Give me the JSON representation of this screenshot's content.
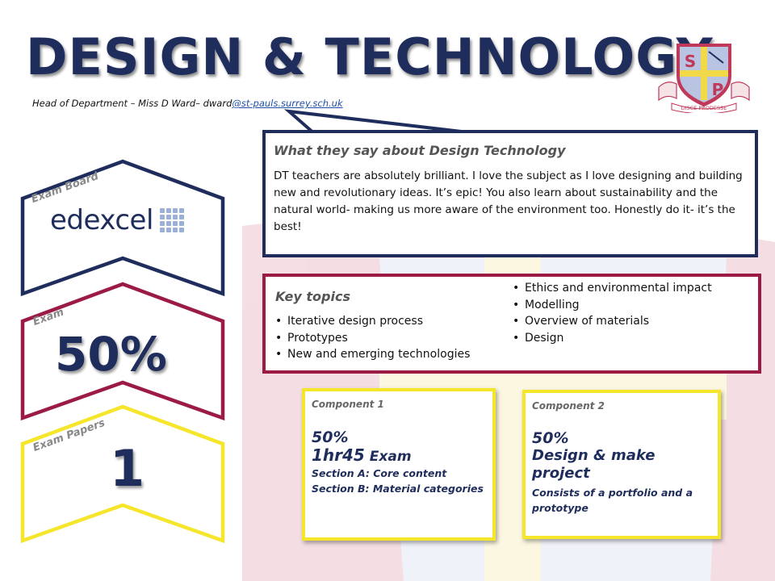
{
  "header": {
    "title": "DESIGN & TECHNOLOGY",
    "subtitle_prefix": "Head of Department – Miss  D Ward– dward",
    "subtitle_email": "@st-pauls.surrey.sch.uk"
  },
  "logo": {
    "letters": [
      "S",
      "P"
    ],
    "motto": "DISCE PRODESSE"
  },
  "quote": {
    "title": "What they say about Design Technology",
    "text": "DT teachers are absolutely brilliant. I love the subject as I love designing and building new and revolutionary ideas. It’s epic! You also learn about sustainability and the natural world- making us more aware of the environment too. Honestly do it- it’s the best!"
  },
  "key_topics": {
    "heading": "Key topics",
    "left": [
      "Iterative design process",
      "Prototypes",
      "New and emerging technologies"
    ],
    "right": [
      "Ethics and environmental impact",
      "Modelling",
      "Overview of materials",
      "Design"
    ]
  },
  "tabs": {
    "exam_board": {
      "label": "Exam Board",
      "value": "edexcel"
    },
    "exam": {
      "label": "Exam",
      "value": "50%"
    },
    "exam_papers": {
      "label": "Exam Papers",
      "value": "1"
    }
  },
  "component1": {
    "label": "Component 1",
    "percent": "50%",
    "duration": "1hr45",
    "duration_suffix": " Exam",
    "section_a": "Section A: Core content",
    "section_b": "Section B: Material categories"
  },
  "component2": {
    "label": "Component 2",
    "percent": "50%",
    "title": "Design & make project",
    "description": "Consists of a portfolio and a prototype"
  },
  "colors": {
    "navy": "#1f2d5c",
    "maroon": "#9b1b45",
    "yellow": "#f5e52b"
  }
}
